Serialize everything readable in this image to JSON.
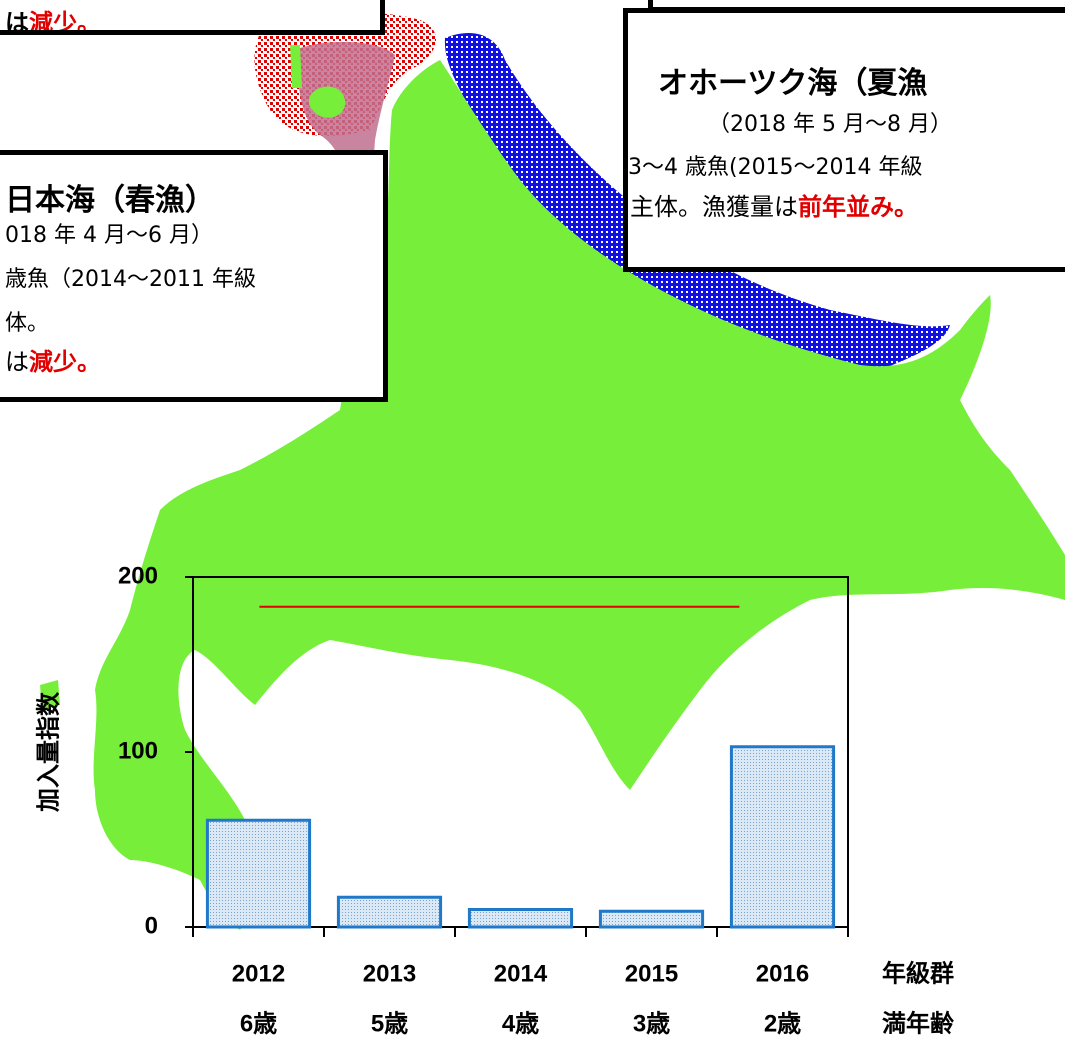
{
  "boxes": {
    "top_left": {
      "lines": [
        [
          "は",
          "減少。"
        ]
      ]
    },
    "japan_sea": {
      "title": "日本海（春漁）",
      "lines": [
        [
          "018 年 4 月～6 月）"
        ],
        [
          "歳魚（2014～2011 年級"
        ],
        [
          "体。"
        ],
        [
          "は",
          "減少。"
        ]
      ]
    },
    "okhotsk": {
      "title": "オホーツク海（夏漁",
      "lines": [
        [
          "（2018 年 5 月～8 月）"
        ],
        [
          "3～4 歳魚(2015～2014 年級"
        ],
        [
          "主体。漁獲量は",
          "前年並み。"
        ]
      ]
    }
  },
  "chart_data": {
    "type": "bar",
    "y_label": "加入量指数",
    "categories": [
      "2012",
      "2013",
      "2014",
      "2015",
      "2016"
    ],
    "ages": [
      "6歳",
      "5歳",
      "4歳",
      "3歳",
      "2歳"
    ],
    "category_title": "年級群",
    "age_title": "満年齢",
    "values": [
      61,
      17,
      10,
      9,
      103
    ],
    "color": "#1f78c8",
    "reference_line": 183,
    "reference_color": "#e00000",
    "ylim": [
      0,
      200
    ],
    "yticks": [
      0,
      100,
      200
    ]
  }
}
